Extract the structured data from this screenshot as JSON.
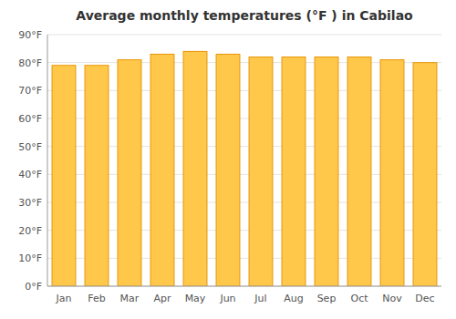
{
  "chart_data": {
    "type": "bar",
    "title": "Average monthly temperatures (°F ) in Cabilao",
    "categories": [
      "Jan",
      "Feb",
      "Mar",
      "Apr",
      "May",
      "Jun",
      "Jul",
      "Aug",
      "Sep",
      "Oct",
      "Nov",
      "Dec"
    ],
    "values": [
      79,
      79,
      81,
      83,
      84,
      83,
      82,
      82,
      82,
      82,
      81,
      80
    ],
    "color": "#FFC84A",
    "ylim": [
      0,
      90
    ],
    "yticks": [
      {
        "value": 0,
        "label": "0°F"
      },
      {
        "value": 10,
        "label": "10°F"
      },
      {
        "value": 20,
        "label": "20°F"
      },
      {
        "value": 30,
        "label": "30°F"
      },
      {
        "value": 40,
        "label": "40°F"
      },
      {
        "value": 50,
        "label": "50°F"
      },
      {
        "value": 60,
        "label": "60°F"
      },
      {
        "value": 70,
        "label": "70°F"
      },
      {
        "value": 80,
        "label": "80°F"
      },
      {
        "value": 90,
        "label": "90°F"
      }
    ],
    "grid": true
  }
}
